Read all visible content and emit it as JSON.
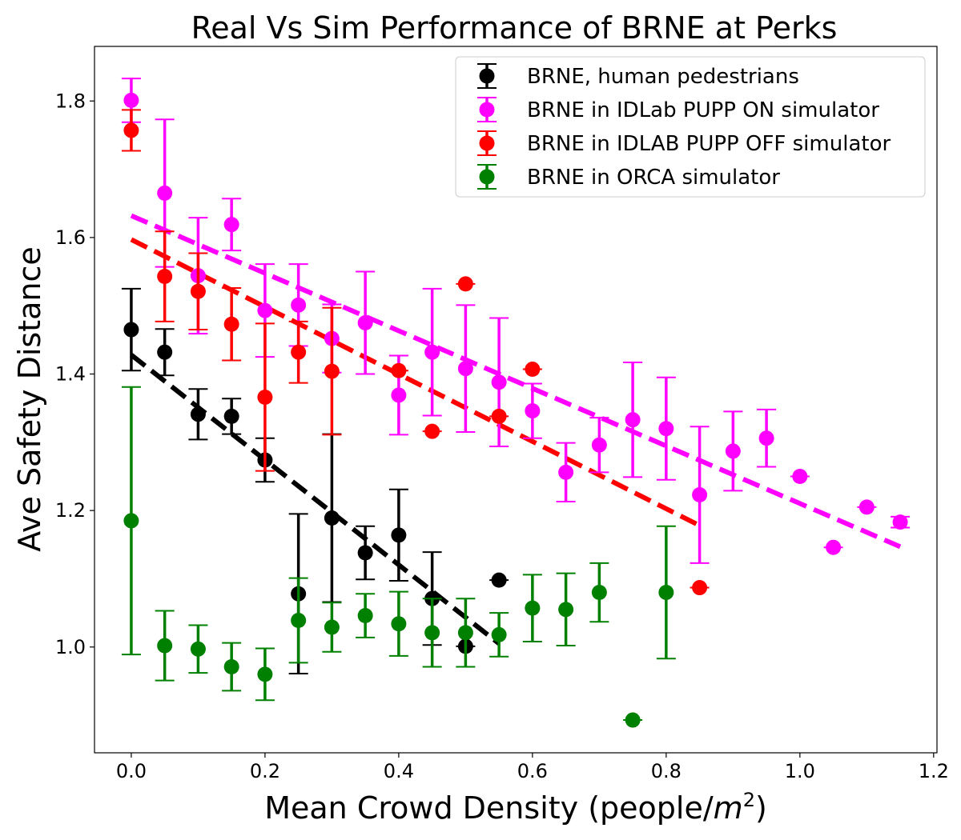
{
  "chart_data": {
    "type": "scatter",
    "title": "Real Vs Sim Performance of BRNE at Perks",
    "xlabel": "Mean Crowd Density (people/",
    "xlabel_unit_base": "m",
    "xlabel_unit_exp": "2",
    "xlabel_close": ")",
    "ylabel": "Ave Safety Distance",
    "xlim": [
      -0.055,
      1.205
    ],
    "ylim": [
      0.845,
      1.88
    ],
    "xticks": [
      0.0,
      0.2,
      0.4,
      0.6,
      0.8,
      1.0,
      1.2
    ],
    "xtick_labels": [
      "0.0",
      "0.2",
      "0.4",
      "0.6",
      "0.8",
      "1.0",
      "1.2"
    ],
    "yticks": [
      1.0,
      1.2,
      1.4,
      1.6,
      1.8
    ],
    "ytick_labels": [
      "1.0",
      "1.2",
      "1.4",
      "1.6",
      "1.8"
    ],
    "grid": false,
    "legend_position": "top-right",
    "series": [
      {
        "name": "BRNE, human pedestrians",
        "color": "#000000",
        "points": [
          {
            "x": 0.0,
            "y": 1.465,
            "err": 0.06
          },
          {
            "x": 0.05,
            "y": 1.432,
            "err": 0.034
          },
          {
            "x": 0.1,
            "y": 1.341,
            "err": 0.037
          },
          {
            "x": 0.15,
            "y": 1.338,
            "err": 0.026
          },
          {
            "x": 0.2,
            "y": 1.274,
            "err": 0.032
          },
          {
            "x": 0.25,
            "y": 1.078,
            "err": 0.117
          },
          {
            "x": 0.3,
            "y": 1.189,
            "err": 0.123
          },
          {
            "x": 0.35,
            "y": 1.138,
            "err": 0.039
          },
          {
            "x": 0.4,
            "y": 1.164,
            "err": 0.067
          },
          {
            "x": 0.45,
            "y": 1.071,
            "err": 0.068
          },
          {
            "x": 0.5,
            "y": 1.001,
            "err": 0
          },
          {
            "x": 0.55,
            "y": 1.098,
            "err": 0
          }
        ],
        "trend": {
          "x0": 0.0,
          "y0": 1.428,
          "x1": 0.55,
          "y1": 1.005
        }
      },
      {
        "name": "BRNE in IDLab PUPP ON simulator",
        "color": "#ff00ff",
        "points": [
          {
            "x": 0.0,
            "y": 1.801,
            "err": 0.032
          },
          {
            "x": 0.05,
            "y": 1.665,
            "err": 0.108
          },
          {
            "x": 0.1,
            "y": 1.544,
            "err": 0.085
          },
          {
            "x": 0.15,
            "y": 1.619,
            "err": 0.038
          },
          {
            "x": 0.2,
            "y": 1.493,
            "err": 0.068
          },
          {
            "x": 0.25,
            "y": 1.501,
            "err": 0.06
          },
          {
            "x": 0.3,
            "y": 1.452,
            "err": 0.05
          },
          {
            "x": 0.35,
            "y": 1.475,
            "err": 0.075
          },
          {
            "x": 0.4,
            "y": 1.369,
            "err": 0.058
          },
          {
            "x": 0.45,
            "y": 1.432,
            "err": 0.093
          },
          {
            "x": 0.5,
            "y": 1.408,
            "err": 0.093
          },
          {
            "x": 0.55,
            "y": 1.388,
            "err": 0.094
          },
          {
            "x": 0.6,
            "y": 1.346,
            "err": 0.04
          },
          {
            "x": 0.65,
            "y": 1.256,
            "err": 0.043
          },
          {
            "x": 0.7,
            "y": 1.296,
            "err": 0.04
          },
          {
            "x": 0.75,
            "y": 1.333,
            "err": 0.084
          },
          {
            "x": 0.8,
            "y": 1.32,
            "err": 0.075
          },
          {
            "x": 0.85,
            "y": 1.223,
            "err": 0.1
          },
          {
            "x": 0.9,
            "y": 1.287,
            "err": 0.058
          },
          {
            "x": 0.95,
            "y": 1.306,
            "err": 0.042
          },
          {
            "x": 1.0,
            "y": 1.25,
            "err": 0
          },
          {
            "x": 1.05,
            "y": 1.146,
            "err": 0
          },
          {
            "x": 1.1,
            "y": 1.205,
            "err": 0
          },
          {
            "x": 1.15,
            "y": 1.183,
            "err": 0.008
          }
        ],
        "trend": {
          "x0": 0.0,
          "y0": 1.632,
          "x1": 1.15,
          "y1": 1.147
        }
      },
      {
        "name": "BRNE in IDLAB PUPP OFF simulator",
        "color": "#ff0000",
        "points": [
          {
            "x": 0.0,
            "y": 1.757,
            "err": 0.03
          },
          {
            "x": 0.05,
            "y": 1.543,
            "err": 0.066
          },
          {
            "x": 0.1,
            "y": 1.521,
            "err": 0.056
          },
          {
            "x": 0.15,
            "y": 1.473,
            "err": 0.053
          },
          {
            "x": 0.2,
            "y": 1.366,
            "err": 0.108
          },
          {
            "x": 0.25,
            "y": 1.432,
            "err": 0.045
          },
          {
            "x": 0.3,
            "y": 1.404,
            "err": 0.093
          },
          {
            "x": 0.4,
            "y": 1.405,
            "err": 0
          },
          {
            "x": 0.45,
            "y": 1.316,
            "err": 0
          },
          {
            "x": 0.5,
            "y": 1.532,
            "err": 0
          },
          {
            "x": 0.55,
            "y": 1.338,
            "err": 0
          },
          {
            "x": 0.6,
            "y": 1.407,
            "err": 0
          },
          {
            "x": 0.85,
            "y": 1.087,
            "err": 0
          }
        ],
        "trend": {
          "x0": 0.0,
          "y0": 1.597,
          "x1": 0.85,
          "y1": 1.178
        }
      },
      {
        "name": "BRNE in ORCA simulator",
        "color": "#008000",
        "points": [
          {
            "x": 0.0,
            "y": 1.185,
            "err": 0.196
          },
          {
            "x": 0.05,
            "y": 1.002,
            "err": 0.051
          },
          {
            "x": 0.1,
            "y": 0.997,
            "err": 0.035
          },
          {
            "x": 0.15,
            "y": 0.971,
            "err": 0.035
          },
          {
            "x": 0.2,
            "y": 0.96,
            "err": 0.038
          },
          {
            "x": 0.25,
            "y": 1.039,
            "err": 0.062
          },
          {
            "x": 0.3,
            "y": 1.029,
            "err": 0.036
          },
          {
            "x": 0.35,
            "y": 1.046,
            "err": 0.032
          },
          {
            "x": 0.4,
            "y": 1.034,
            "err": 0.047
          },
          {
            "x": 0.45,
            "y": 1.021,
            "err": 0.05
          },
          {
            "x": 0.5,
            "y": 1.021,
            "err": 0.05
          },
          {
            "x": 0.55,
            "y": 1.018,
            "err": 0.032
          },
          {
            "x": 0.6,
            "y": 1.057,
            "err": 0.049
          },
          {
            "x": 0.65,
            "y": 1.055,
            "err": 0.053
          },
          {
            "x": 0.7,
            "y": 1.08,
            "err": 0.043
          },
          {
            "x": 0.75,
            "y": 0.893,
            "err": 0
          },
          {
            "x": 0.8,
            "y": 1.08,
            "err": 0.097
          }
        ]
      }
    ]
  }
}
